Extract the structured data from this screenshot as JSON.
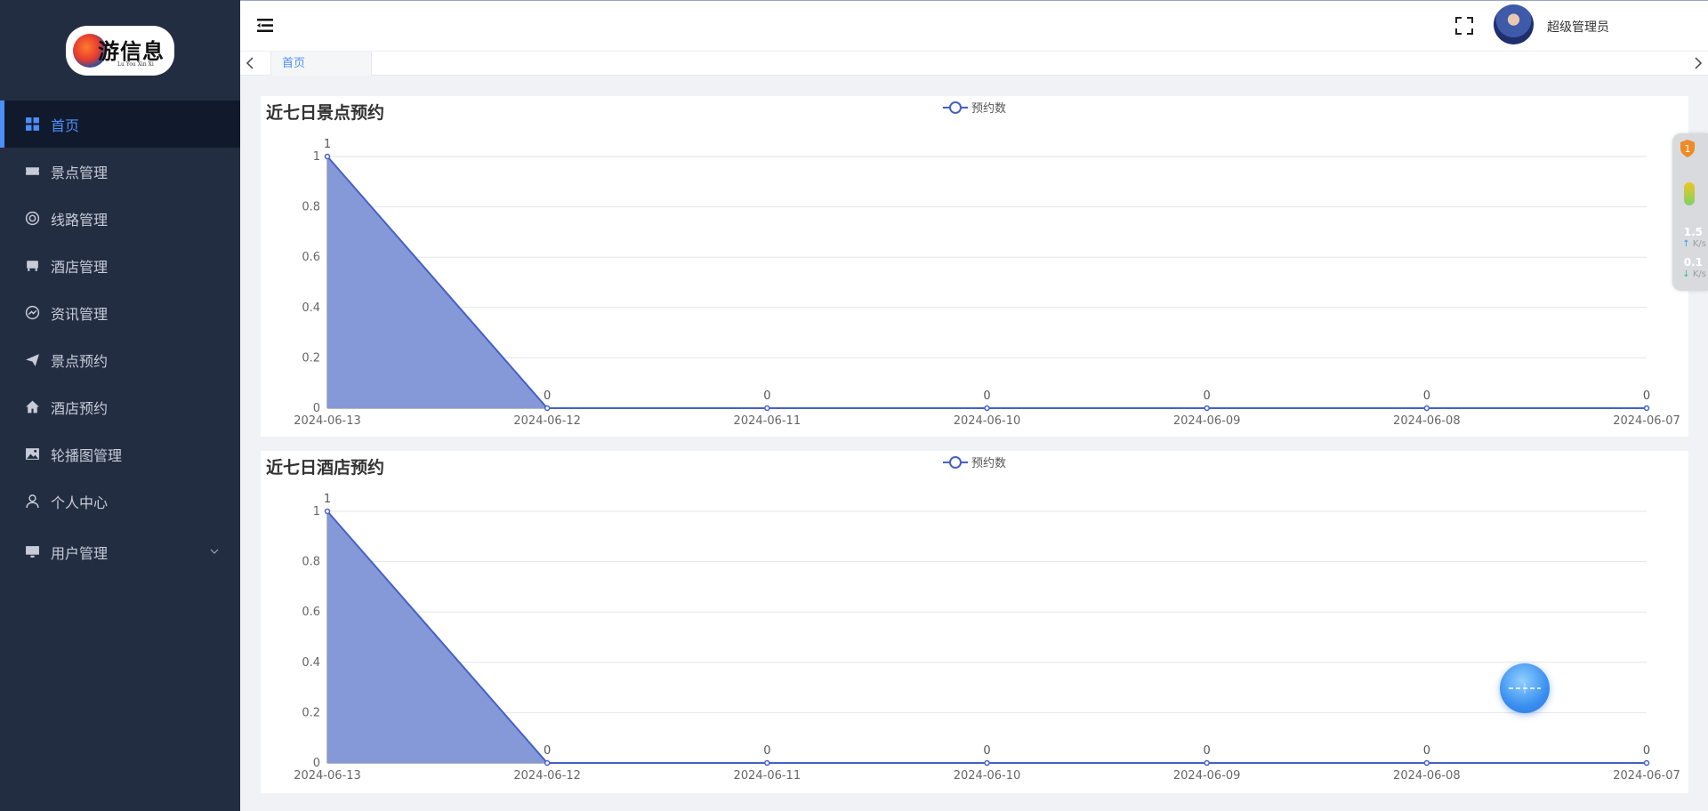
{
  "logo": {
    "main": "游信息",
    "sub": "Lu You Xin Xi"
  },
  "sidebar": {
    "items": [
      {
        "label": "首页",
        "icon": "dashboard-grid-icon",
        "active": true
      },
      {
        "label": "景点管理",
        "icon": "ticket-icon"
      },
      {
        "label": "线路管理",
        "icon": "lifebuoy-icon"
      },
      {
        "label": "酒店管理",
        "icon": "bed-icon"
      },
      {
        "label": "资讯管理",
        "icon": "trend-circle-icon"
      },
      {
        "label": "景点预约",
        "icon": "paper-plane-icon"
      },
      {
        "label": "酒店预约",
        "icon": "home-icon"
      },
      {
        "label": "轮播图管理",
        "icon": "image-icon"
      },
      {
        "label": "个人中心",
        "icon": "user-icon"
      },
      {
        "label": "用户管理",
        "icon": "monitor-icon",
        "has_submenu": true
      }
    ]
  },
  "header": {
    "username": "超级管理员"
  },
  "tabs": [
    {
      "label": "首页"
    }
  ],
  "charts": {
    "scenic": {
      "title": "近七日景点预约",
      "legend": "预约数"
    },
    "hotel": {
      "title": "近七日酒店预约",
      "legend": "预约数"
    }
  },
  "chart_data": [
    {
      "type": "area",
      "title": "近七日景点预约",
      "categories": [
        "2024-06-13",
        "2024-06-12",
        "2024-06-11",
        "2024-06-10",
        "2024-06-09",
        "2024-06-08",
        "2024-06-07"
      ],
      "series": [
        {
          "name": "预约数",
          "values": [
            1,
            0,
            0,
            0,
            0,
            0,
            0
          ]
        }
      ],
      "ylim": [
        0,
        1
      ],
      "yticks": [
        "0",
        "0.2",
        "0.4",
        "0.6",
        "0.8",
        "1"
      ],
      "legend_position": "top-center",
      "grid": true
    },
    {
      "type": "area",
      "title": "近七日酒店预约",
      "categories": [
        "2024-06-13",
        "2024-06-12",
        "2024-06-11",
        "2024-06-10",
        "2024-06-09",
        "2024-06-08",
        "2024-06-07"
      ],
      "series": [
        {
          "name": "预约数",
          "values": [
            1,
            0,
            0,
            0,
            0,
            0,
            0
          ]
        }
      ],
      "ylim": [
        0,
        1
      ],
      "yticks": [
        "0",
        "0.2",
        "0.4",
        "0.6",
        "0.8",
        "1"
      ],
      "legend_position": "top-center",
      "grid": true
    }
  ],
  "colors": {
    "sidebar_bg": "#232d42",
    "accent": "#4d8ff8",
    "series_line": "#4560c8",
    "series_fill": "#8599d8"
  },
  "net_widget": {
    "badge": "1",
    "upload_value": "1.5",
    "upload_unit": "K/s",
    "download_value": "0.1",
    "download_unit": "K/s"
  }
}
